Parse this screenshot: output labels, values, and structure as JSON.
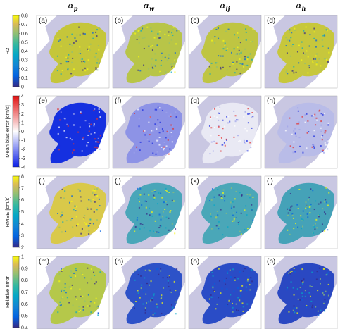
{
  "columns": [
    {
      "symbol": "α",
      "subscript": "p"
    },
    {
      "symbol": "α",
      "subscript": "w"
    },
    {
      "symbol": "α",
      "subscript": "ij"
    },
    {
      "symbol": "α",
      "subscript": "h"
    }
  ],
  "rows": [
    {
      "ylabel": "R2",
      "colormap": "parula",
      "ticks": [
        "0",
        "0.1",
        "0.2",
        "0.3",
        "0.4",
        "0.5",
        "0.6",
        "0.7",
        "0.8"
      ],
      "panels": [
        "(a)",
        "(b)",
        "(c)",
        "(d)"
      ]
    },
    {
      "ylabel": "Mean bias error [cm/s]",
      "colormap": "blue-white-red",
      "ticks": [
        "-4",
        "-3",
        "-2",
        "-1",
        "0",
        "1",
        "2",
        "3",
        "4"
      ],
      "panels": [
        "(e)",
        "(f)",
        "(g)",
        "(h)"
      ]
    },
    {
      "ylabel": "RMSE [cm/s]",
      "colormap": "parula",
      "ticks": [
        "2",
        "3",
        "4",
        "5",
        "6",
        "7",
        "8"
      ],
      "panels": [
        "(i)",
        "(j)",
        "(k)",
        "(l)"
      ]
    },
    {
      "ylabel": "Relative error",
      "colormap": "parula",
      "ticks": [
        "0.4",
        "0.5",
        "0.6",
        "0.7",
        "0.8",
        "0.9",
        "1"
      ],
      "panels": [
        "(m)",
        "(n)",
        "(o)",
        "(p)"
      ]
    }
  ],
  "colors": {
    "ocean": "#c9c7e2",
    "land": "#ffffff",
    "coast": "#b9b9c9"
  }
}
